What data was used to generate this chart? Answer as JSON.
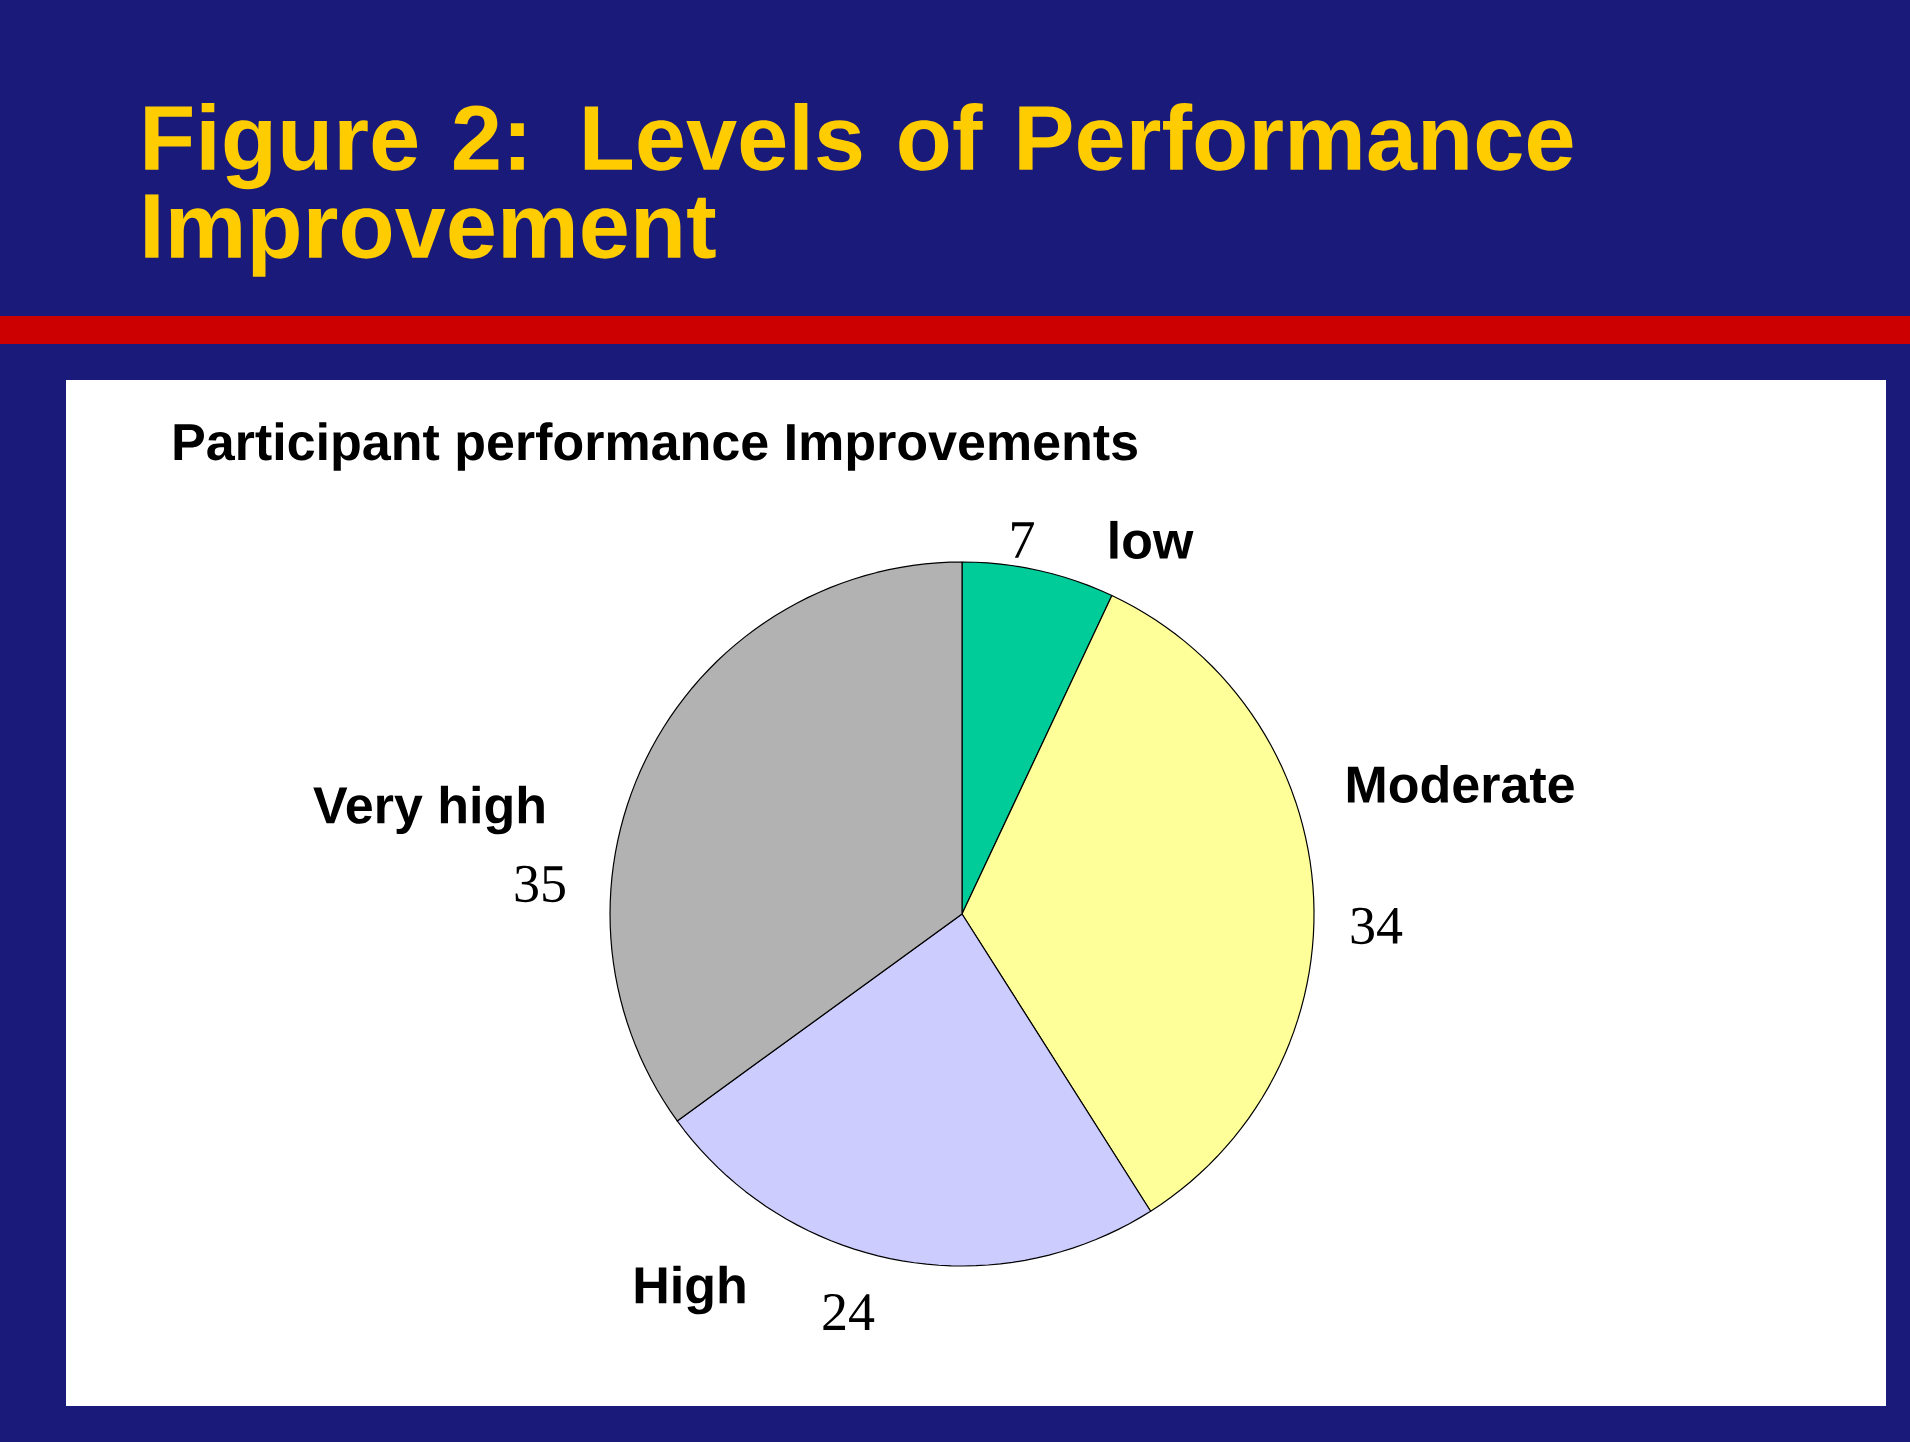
{
  "chart_data": {
    "type": "pie",
    "title": "Figure 2: Levels of Performance Improvement",
    "subtitle": "Participant performance Improvements",
    "categories": [
      "low",
      "Moderate",
      "High",
      "Very high"
    ],
    "values": [
      7,
      34,
      24,
      35
    ],
    "colors": [
      "#00cc99",
      "#ffff99",
      "#ccccff",
      "#b2b2b2"
    ],
    "data_labels": true
  }
}
